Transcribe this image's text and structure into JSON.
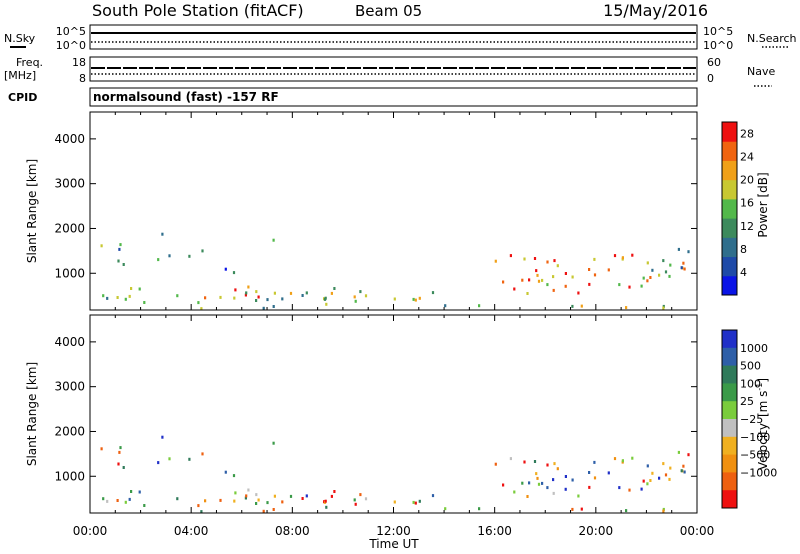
{
  "header": {
    "station": "South Pole Station (fitACF)",
    "beam": "Beam 05",
    "date": "15/May/2016"
  },
  "aux_panels": {
    "nsky_label": "N.Sky",
    "nsky_ticks": [
      "10^5",
      "10^0"
    ],
    "nsearch_label": "N.Search",
    "nsearch_ticks": [
      "10^5",
      "10^0"
    ],
    "freq_label": "Freq.",
    "freq_unit": "[MHz]",
    "freq_ticks": [
      "18",
      "8"
    ],
    "nave_label": "Nave",
    "nave_ticks": [
      "60",
      "0"
    ],
    "cpid_label": "CPID",
    "mode_text": "normalsound (fast) -157 RF"
  },
  "colors": {
    "power": [
      "#0a14e6",
      "#1e4aa8",
      "#2f6e8c",
      "#3c8a5c",
      "#52b84a",
      "#c8c832",
      "#f0a018",
      "#f06410",
      "#ee1010"
    ],
    "velocity": [
      "#2030c8",
      "#2e5fa8",
      "#2f7a5a",
      "#3a9a48",
      "#7acc3c",
      "#c0c0c0",
      "#f0b020",
      "#f09010",
      "#ee6010",
      "#ee1010"
    ]
  },
  "chart_data": [
    {
      "type": "heatmap",
      "name": "power",
      "ylabel": "Slant Range [km]",
      "xlabel": "",
      "y_ticks": [
        "1000",
        "2000",
        "3000",
        "4000"
      ],
      "y_tick_values": [
        1000,
        2000,
        3000,
        4000
      ],
      "ylim": [
        180,
        4600
      ],
      "x_ticks": [
        "00:00",
        "04:00",
        "08:00",
        "12:00",
        "16:00",
        "20:00",
        "00:00"
      ],
      "xlim_hours": [
        0,
        24
      ],
      "colorbar": {
        "label": "Power [dB]",
        "ticks": [
          "4",
          "8",
          "12",
          "16",
          "20",
          "24",
          "28"
        ],
        "tick_values": [
          4,
          8,
          12,
          16,
          20,
          24,
          28
        ],
        "range": [
          0,
          30
        ]
      }
    },
    {
      "type": "heatmap",
      "name": "velocity",
      "ylabel": "Slant Range [km]",
      "xlabel": "Time UT",
      "y_ticks": [
        "1000",
        "2000",
        "3000",
        "4000"
      ],
      "y_tick_values": [
        1000,
        2000,
        3000,
        4000
      ],
      "ylim": [
        180,
        4600
      ],
      "x_ticks": [
        "00:00",
        "04:00",
        "08:00",
        "12:00",
        "16:00",
        "20:00",
        "00:00"
      ],
      "xlim_hours": [
        0,
        24
      ],
      "colorbar": {
        "label": "Velocity",
        "unit": "[m s",
        "unit_sup": "-1",
        "unit_end": "]",
        "ticks": [
          "1000",
          "500",
          "100",
          "25",
          "−25",
          "−100",
          "−500",
          "−1000"
        ],
        "bins": [
          "1000",
          "500",
          "100",
          "25",
          "-25",
          "-100",
          "-500",
          "-1000"
        ]
      }
    }
  ]
}
